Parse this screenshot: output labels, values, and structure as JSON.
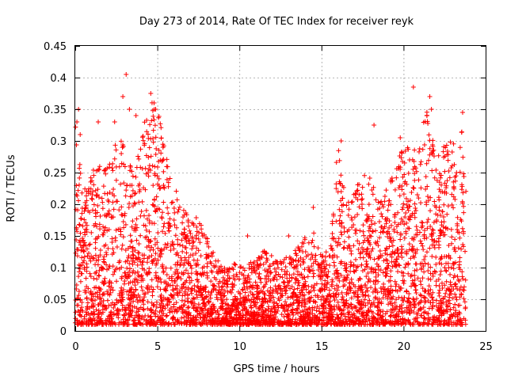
{
  "chart_data": {
    "type": "scatter",
    "title": "Day 273 of 2014, Rate Of TEC Index for receiver reyk",
    "xlabel": "GPS time / hours",
    "ylabel": "ROTI / TECUs",
    "xlim": [
      0,
      25
    ],
    "ylim": [
      0,
      0.45
    ],
    "x_ticks": [
      0,
      5,
      10,
      15,
      20,
      25
    ],
    "y_ticks": [
      0,
      0.05,
      0.1,
      0.15,
      0.2,
      0.25,
      0.3,
      0.35,
      0.4,
      0.45
    ],
    "x_tick_labels": [
      "0",
      "5",
      "10",
      "15",
      "20",
      "25"
    ],
    "y_tick_labels": [
      "0",
      "0.05",
      "0.1",
      "0.15",
      "0.2",
      "0.25",
      "0.3",
      "0.35",
      "0.4",
      "0.45"
    ],
    "grid": true,
    "marker": "+",
    "marker_color": "#ff0000",
    "x_data_range": [
      0,
      23.8
    ],
    "envelope_hours": [
      0,
      0.5,
      1,
      1.5,
      2,
      2.5,
      3,
      3.5,
      4,
      4.5,
      5,
      5.5,
      6,
      6.5,
      7,
      7.5,
      8,
      8.5,
      9,
      9.5,
      10,
      10.5,
      11,
      11.5,
      12,
      12.5,
      13,
      13.5,
      14,
      14.5,
      15,
      15.5,
      16,
      16.5,
      17,
      17.5,
      18,
      18.5,
      19,
      19.5,
      20,
      20.5,
      21,
      21.5,
      22,
      22.5,
      23,
      23.5,
      23.8
    ],
    "envelope_roti": [
      0.33,
      0.22,
      0.25,
      0.27,
      0.26,
      0.3,
      0.3,
      0.25,
      0.3,
      0.37,
      0.35,
      0.3,
      0.23,
      0.2,
      0.18,
      0.18,
      0.15,
      0.12,
      0.1,
      0.1,
      0.12,
      0.11,
      0.11,
      0.13,
      0.12,
      0.11,
      0.12,
      0.13,
      0.15,
      0.16,
      0.12,
      0.13,
      0.3,
      0.2,
      0.22,
      0.25,
      0.25,
      0.22,
      0.24,
      0.25,
      0.3,
      0.28,
      0.3,
      0.37,
      0.27,
      0.3,
      0.3,
      0.33,
      0.27
    ],
    "outliers": [
      {
        "x": 0.1,
        "y": 0.33
      },
      {
        "x": 0.2,
        "y": 0.35
      },
      {
        "x": 0.3,
        "y": 0.31
      },
      {
        "x": 3.1,
        "y": 0.405
      },
      {
        "x": 2.9,
        "y": 0.37
      },
      {
        "x": 3.3,
        "y": 0.35
      },
      {
        "x": 4.6,
        "y": 0.375
      },
      {
        "x": 4.8,
        "y": 0.36
      },
      {
        "x": 4.9,
        "y": 0.35
      },
      {
        "x": 2.4,
        "y": 0.33
      },
      {
        "x": 3.7,
        "y": 0.34
      },
      {
        "x": 18.2,
        "y": 0.325
      },
      {
        "x": 20.6,
        "y": 0.385
      },
      {
        "x": 21.6,
        "y": 0.37
      },
      {
        "x": 21.7,
        "y": 0.35
      },
      {
        "x": 23.6,
        "y": 0.345
      },
      {
        "x": 16.2,
        "y": 0.3
      },
      {
        "x": 19.8,
        "y": 0.305
      },
      {
        "x": 14.5,
        "y": 0.195
      },
      {
        "x": 10.5,
        "y": 0.15
      },
      {
        "x": 13.0,
        "y": 0.15
      },
      {
        "x": 1.4,
        "y": 0.33
      }
    ]
  }
}
